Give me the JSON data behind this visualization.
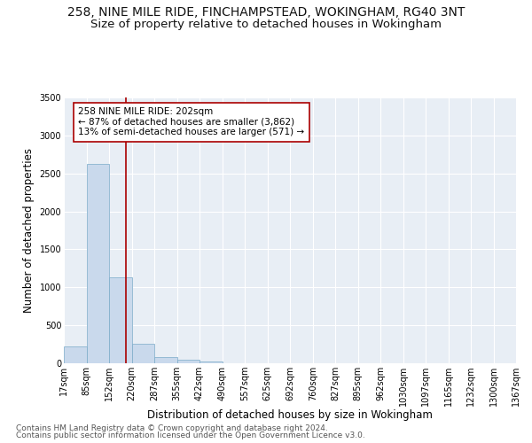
{
  "title": "258, NINE MILE RIDE, FINCHAMPSTEAD, WOKINGHAM, RG40 3NT",
  "subtitle": "Size of property relative to detached houses in Wokingham",
  "xlabel": "Distribution of detached houses by size in Wokingham",
  "ylabel": "Number of detached properties",
  "footnote1": "Contains HM Land Registry data © Crown copyright and database right 2024.",
  "footnote2": "Contains public sector information licensed under the Open Government Licence v3.0.",
  "annotation_line1": "258 NINE MILE RIDE: 202sqm",
  "annotation_line2": "← 87% of detached houses are smaller (3,862)",
  "annotation_line3": "13% of semi-detached houses are larger (571) →",
  "property_size": 202,
  "bar_edges": [
    17,
    85,
    152,
    220,
    287,
    355,
    422,
    490,
    557,
    625,
    692,
    760,
    827,
    895,
    962,
    1030,
    1097,
    1165,
    1232,
    1300,
    1367
  ],
  "bar_values": [
    220,
    2630,
    1130,
    255,
    85,
    45,
    25,
    0,
    0,
    0,
    0,
    0,
    0,
    0,
    0,
    0,
    0,
    0,
    0,
    0
  ],
  "bar_color": "#c9d9ec",
  "bar_edge_color": "#7aaac8",
  "vertical_line_color": "#aa0000",
  "vertical_line_x": 202,
  "tick_labels": [
    "17sqm",
    "85sqm",
    "152sqm",
    "220sqm",
    "287sqm",
    "355sqm",
    "422sqm",
    "490sqm",
    "557sqm",
    "625sqm",
    "692sqm",
    "760sqm",
    "827sqm",
    "895sqm",
    "962sqm",
    "1030sqm",
    "1097sqm",
    "1165sqm",
    "1232sqm",
    "1300sqm",
    "1367sqm"
  ],
  "ylim": [
    0,
    3500
  ],
  "yticks": [
    0,
    500,
    1000,
    1500,
    2000,
    2500,
    3000,
    3500
  ],
  "plot_bg_color": "#e8eef5",
  "annotation_box_facecolor": "#ffffff",
  "annotation_box_edgecolor": "#aa0000",
  "title_fontsize": 10,
  "subtitle_fontsize": 9.5,
  "axis_label_fontsize": 8.5,
  "tick_fontsize": 7,
  "annotation_fontsize": 7.5,
  "footnote_fontsize": 6.5
}
